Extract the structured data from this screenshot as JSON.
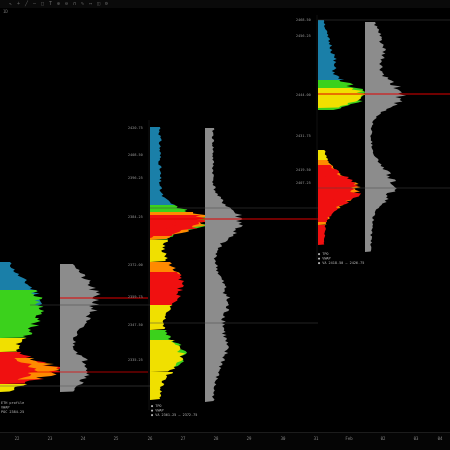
{
  "toolbar": {
    "icons": [
      {
        "name": "cursor-icon",
        "glyph": "↖"
      },
      {
        "name": "crosshair-icon",
        "glyph": "+"
      },
      {
        "name": "trend-line-icon",
        "glyph": "╱"
      },
      {
        "name": "horizontal-line-icon",
        "glyph": "―"
      },
      {
        "name": "rectangle-icon",
        "glyph": "□"
      },
      {
        "name": "text-icon",
        "glyph": "T"
      },
      {
        "name": "zoom-in-icon",
        "glyph": "⊕"
      },
      {
        "name": "zoom-out-icon",
        "glyph": "⊖"
      },
      {
        "name": "magnet-icon",
        "glyph": "∩"
      },
      {
        "name": "pencil-icon",
        "glyph": "✎"
      },
      {
        "name": "measure-icon",
        "glyph": "↔"
      },
      {
        "name": "eraser-icon",
        "glyph": "◫"
      },
      {
        "name": "settings-icon",
        "glyph": "⚙"
      }
    ]
  },
  "instrument_label": "1D",
  "time_axis": [
    "22",
    "23",
    "24",
    "25",
    "26",
    "27",
    "28",
    "29",
    "30",
    "31",
    "Feb",
    "02",
    "03",
    "04",
    "07"
  ],
  "profiles": [
    {
      "id": "profile-1",
      "price_labels": [],
      "legend": [
        "ETH profile",
        "VWAP",
        "POC 2384.25"
      ]
    },
    {
      "id": "profile-2",
      "price_labels": [
        "2420.75",
        "2408.50",
        "2396.25",
        "2384.25",
        "2372.00",
        "2359.75",
        "2347.50",
        "2335.25"
      ],
      "legend": [
        "● TPO",
        "● VWAP",
        "● VA 2361.25 – 2372.75"
      ]
    },
    {
      "id": "profile-3",
      "price_labels": [
        "2468.50",
        "2456.25",
        "2444.00",
        "2431.75",
        "2419.50",
        "2407.25"
      ],
      "legend": [
        "● TPO",
        "● VWAP",
        "● VA 2418.50 – 2426.75"
      ]
    }
  ],
  "colors": {
    "blue": "#1a7fa8",
    "green": "#3bd11c",
    "yellow": "#f0e000",
    "orange": "#ff8a00",
    "red": "#f01010",
    "poc": "#e00000",
    "grey": "#9a9a9a"
  }
}
